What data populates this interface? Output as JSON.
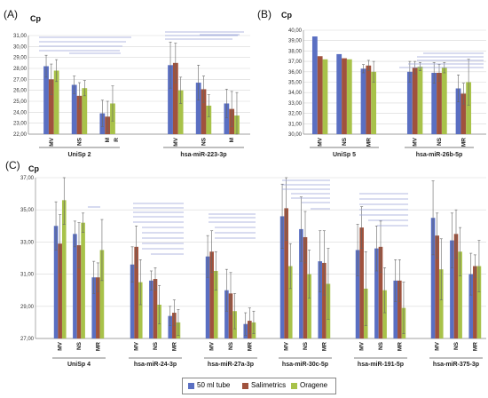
{
  "colors": {
    "tube": "#5a6fc2",
    "sali": "#a0523d",
    "ora": "#a8c24a",
    "sig": "#9aa3d8",
    "grid": "#d8d8d8"
  },
  "legend": {
    "items": [
      "50 ml tube",
      "Salimetrics",
      "Oragene"
    ]
  },
  "chart_data": [
    {
      "type": "bar",
      "panel": "(A)",
      "ylabel": "Cp",
      "ylim": [
        22,
        31
      ],
      "ystep": 1,
      "ydec": 2,
      "series_names": [
        "50 ml tube",
        "Salimetrics",
        "Oragene"
      ],
      "groups": [
        {
          "name": "UniSp 2",
          "categories": [
            {
              "label": "MV",
              "values": [
                28.2,
                27.0,
                27.8
              ],
              "errors": [
                1.0,
                1.4,
                1.0
              ]
            },
            {
              "label": "NS",
              "values": [
                26.5,
                25.5,
                26.2
              ],
              "errors": [
                0.8,
                1.2,
                0.7
              ]
            },
            {
              "label": "M",
              "values": [
                23.9,
                23.6,
                24.8
              ],
              "errors": [
                1.2,
                1.4,
                1.6
              ]
            }
          ]
        },
        {
          "name": "hsa-miR-223-3p",
          "categories": [
            {
              "label": "MV",
              "values": [
                28.3,
                28.5,
                26.0
              ],
              "errors": [
                2.1,
                1.8,
                1.2
              ]
            },
            {
              "label": "NS",
              "values": [
                26.7,
                26.1,
                24.6
              ],
              "errors": [
                1.6,
                1.2,
                1.0
              ]
            },
            {
              "label": "M",
              "values": [
                24.8,
                24.3,
                23.7
              ],
              "errors": [
                1.3,
                1.6,
                2.1
              ]
            }
          ]
        }
      ],
      "extra_labels": [
        "R"
      ]
    },
    {
      "type": "bar",
      "panel": "(B)",
      "ylabel": "Cp",
      "ylim": [
        30,
        40
      ],
      "ystep": 1,
      "ydec": 2,
      "series_names": [
        "50 ml tube",
        "Salimetrics",
        "Oragene"
      ],
      "groups": [
        {
          "name": "UniSp 5",
          "categories": [
            {
              "label": "MV",
              "values": [
                39.4,
                37.5,
                37.2
              ],
              "errors": [
                0,
                0,
                0
              ]
            },
            {
              "label": "NS",
              "values": [
                37.7,
                37.3,
                37.2
              ],
              "errors": [
                0,
                0,
                0
              ]
            },
            {
              "label": "MR",
              "values": [
                36.3,
                36.6,
                36.0
              ],
              "errors": [
                0.4,
                0.5,
                1.0
              ]
            }
          ]
        },
        {
          "name": "hsa-miR-26b-5p",
          "categories": [
            {
              "label": "MV",
              "values": [
                36.0,
                36.4,
                36.5
              ],
              "errors": [
                1.0,
                0.6,
                0.4
              ]
            },
            {
              "label": "NS",
              "values": [
                35.9,
                35.9,
                36.4
              ],
              "errors": [
                1.0,
                0.8,
                0.5
              ]
            },
            {
              "label": "MR",
              "values": [
                34.4,
                33.9,
                35.0
              ],
              "errors": [
                1.3,
                1.0,
                2.2
              ]
            }
          ]
        }
      ]
    },
    {
      "type": "bar",
      "panel": "(C)",
      "ylabel": "Cp",
      "ylim": [
        27,
        37
      ],
      "ystep": 2,
      "ydec": 2,
      "series_names": [
        "50 ml tube",
        "Salimetrics",
        "Oragene"
      ],
      "groups": [
        {
          "name": "UniSp 4",
          "categories": [
            {
              "label": "MV",
              "values": [
                34.0,
                32.9,
                35.6
              ],
              "errors": [
                1.5,
                1.8,
                1.5
              ]
            },
            {
              "label": "NS",
              "values": [
                33.5,
                32.8,
                34.2
              ],
              "errors": [
                0.8,
                1.4,
                0.6
              ]
            },
            {
              "label": "MR",
              "values": [
                30.8,
                30.8,
                32.5
              ],
              "errors": [
                1.0,
                0.9,
                1.9
              ]
            }
          ]
        },
        {
          "name": "hsa-miR-24-3p",
          "categories": [
            {
              "label": "MV",
              "values": [
                31.6,
                32.7,
                30.5
              ],
              "errors": [
                1.1,
                1.3,
                1.4
              ]
            },
            {
              "label": "NS",
              "values": [
                30.6,
                30.7,
                29.1
              ],
              "errors": [
                0.6,
                0.7,
                1.2
              ]
            },
            {
              "label": "MR",
              "values": [
                28.4,
                28.6,
                28.0
              ],
              "errors": [
                0.6,
                0.8,
                0.8
              ]
            }
          ]
        },
        {
          "name": "hsa-miR-27a-3p",
          "categories": [
            {
              "label": "MV",
              "values": [
                32.1,
                32.4,
                31.2
              ],
              "errors": [
                1.3,
                1.3,
                1.2
              ]
            },
            {
              "label": "NS",
              "values": [
                30.0,
                29.8,
                28.7
              ],
              "errors": [
                1.3,
                1.3,
                1.1
              ]
            },
            {
              "label": "MR",
              "values": [
                27.9,
                28.1,
                28.0
              ],
              "errors": [
                0.7,
                0.8,
                0.7
              ]
            }
          ]
        },
        {
          "name": "hsa-miR-30c-5p",
          "categories": [
            {
              "label": "MV",
              "values": [
                34.6,
                35.1,
                31.5
              ],
              "errors": [
                2.0,
                2.0,
                1.4
              ]
            },
            {
              "label": "NS",
              "values": [
                33.8,
                33.3,
                31.0
              ],
              "errors": [
                2.0,
                1.6,
                1.5
              ]
            },
            {
              "label": "MR",
              "values": [
                31.8,
                31.7,
                30.4
              ],
              "errors": [
                1.9,
                2.0,
                2.2
              ]
            }
          ]
        },
        {
          "name": "hsa-miR-191-5p",
          "categories": [
            {
              "label": "MV",
              "values": [
                32.5,
                33.9,
                30.1
              ],
              "errors": [
                1.6,
                1.3,
                2.3
              ]
            },
            {
              "label": "NS",
              "values": [
                32.6,
                32.7,
                30.0
              ],
              "errors": [
                1.4,
                1.6,
                1.4
              ]
            },
            {
              "label": "MR",
              "values": [
                30.6,
                30.6,
                28.9
              ],
              "errors": [
                1.3,
                1.3,
                1.6
              ]
            }
          ]
        },
        {
          "name": "hsa-miR-375-3p",
          "categories": [
            {
              "label": "MV",
              "values": [
                34.5,
                33.4,
                31.3
              ],
              "errors": [
                2.3,
                1.4,
                1.9
              ]
            },
            {
              "label": "NS",
              "values": [
                33.1,
                33.5,
                32.4
              ],
              "errors": [
                1.7,
                1.5,
                1.5
              ]
            },
            {
              "label": "MR",
              "values": [
                31.0,
                31.5,
                31.5
              ],
              "errors": [
                1.3,
                0.7,
                1.6
              ]
            }
          ]
        }
      ]
    }
  ]
}
